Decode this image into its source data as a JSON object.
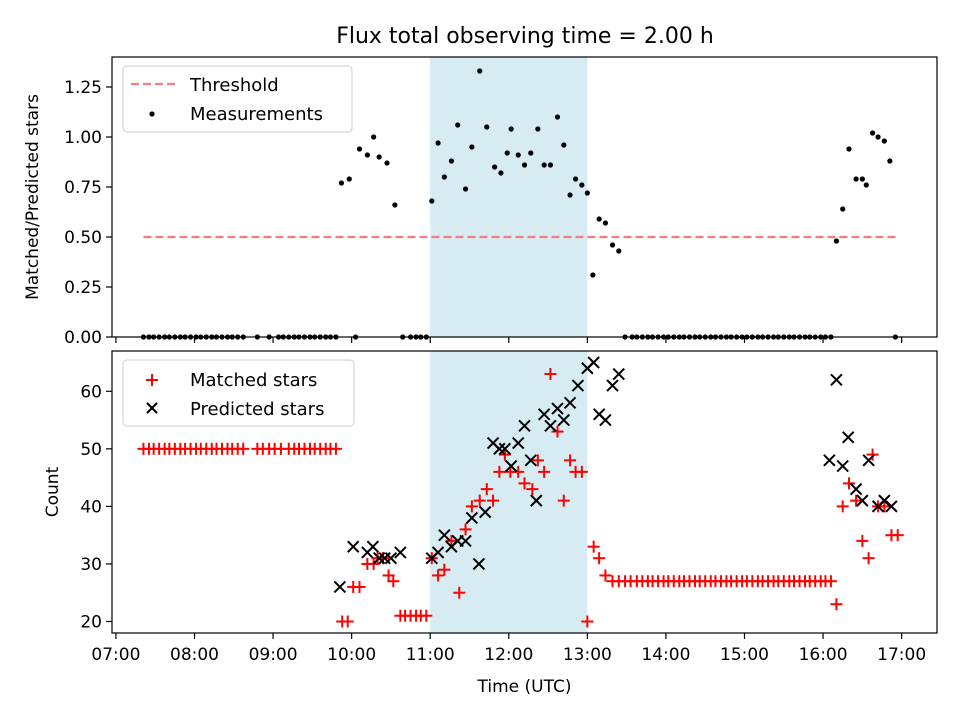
{
  "figure_title": "Flux total observing time = 2.00 h",
  "chart_data": [
    {
      "type": "scatter",
      "name": "ratio-panel",
      "ylabel": "Matched/Predicted stars",
      "xlabel": "",
      "xlim_hours": [
        6.95,
        17.45
      ],
      "ylim": [
        0,
        1.4
      ],
      "yticks": [
        0.0,
        0.25,
        0.5,
        0.75,
        1.0,
        1.25
      ],
      "ytick_labels": [
        "0.00",
        "0.25",
        "0.50",
        "0.75",
        "1.00",
        "1.25"
      ],
      "highlight_span_hours": [
        11.0,
        13.0
      ],
      "threshold": {
        "label": "Threshold",
        "y": 0.5,
        "x_range_hours": [
          7.35,
          16.95
        ],
        "color": "#f08080"
      },
      "series": [
        {
          "name": "Measurements",
          "color": "#000000",
          "x": [
            7.35,
            7.42,
            7.48,
            7.55,
            7.62,
            7.68,
            7.75,
            7.82,
            7.88,
            7.95,
            8.02,
            8.08,
            8.15,
            8.22,
            8.28,
            8.35,
            8.42,
            8.48,
            8.55,
            8.62,
            8.8,
            8.95,
            9.07,
            9.13,
            9.2,
            9.27,
            9.33,
            9.4,
            9.47,
            9.53,
            9.6,
            9.67,
            9.73,
            9.8,
            9.87,
            9.97,
            10.05,
            10.1,
            10.2,
            10.28,
            10.35,
            10.45,
            10.55,
            10.65,
            10.75,
            10.82,
            10.88,
            10.95,
            11.02,
            11.1,
            11.18,
            11.27,
            11.35,
            11.45,
            11.53,
            11.63,
            11.72,
            11.82,
            11.9,
            11.98,
            12.03,
            12.12,
            12.2,
            12.28,
            12.37,
            12.45,
            12.53,
            12.62,
            12.7,
            12.78,
            12.85,
            12.93,
            13.0,
            13.07,
            13.15,
            13.23,
            13.32,
            13.4,
            13.48,
            13.57,
            13.63,
            13.7,
            13.77,
            13.83,
            13.9,
            13.97,
            14.03,
            14.1,
            14.17,
            14.23,
            14.3,
            14.37,
            14.43,
            14.5,
            14.57,
            14.63,
            14.7,
            14.77,
            14.83,
            14.9,
            14.97,
            15.03,
            15.1,
            15.17,
            15.23,
            15.3,
            15.37,
            15.43,
            15.5,
            15.57,
            15.63,
            15.7,
            15.77,
            15.83,
            15.9,
            15.97,
            16.03,
            16.1,
            16.17,
            16.25,
            16.33,
            16.42,
            16.5,
            16.55,
            16.63,
            16.7,
            16.78,
            16.85,
            16.92
          ],
          "y": [
            0,
            0,
            0,
            0,
            0,
            0,
            0,
            0,
            0,
            0,
            0,
            0,
            0,
            0,
            0,
            0,
            0,
            0,
            0,
            0,
            0,
            0,
            0,
            0,
            0,
            0,
            0,
            0,
            0,
            0,
            0,
            0,
            0,
            0,
            0.77,
            0.79,
            0,
            0.94,
            0.91,
            1.0,
            0.9,
            0.87,
            0.66,
            0,
            0,
            0,
            0,
            0,
            0.68,
            0.97,
            0.8,
            0.88,
            1.06,
            0.74,
            0.95,
            1.33,
            1.05,
            0.85,
            0.82,
            0.92,
            1.04,
            0.91,
            0.86,
            0.92,
            1.04,
            0.86,
            0.86,
            1.1,
            0.96,
            0.71,
            0.79,
            0.76,
            0.72,
            0.31,
            0.59,
            0.57,
            0.46,
            0.43,
            0,
            0,
            0,
            0,
            0,
            0,
            0,
            0,
            0,
            0,
            0,
            0,
            0,
            0,
            0,
            0,
            0,
            0,
            0,
            0,
            0,
            0,
            0,
            0,
            0,
            0,
            0,
            0,
            0,
            0,
            0,
            0,
            0,
            0,
            0,
            0,
            0,
            0,
            0,
            0,
            0.48,
            0.64,
            0.94,
            0.79,
            0.79,
            0.76,
            1.02,
            1.0,
            0.98,
            0.88,
            0
          ]
        }
      ]
    },
    {
      "type": "scatter",
      "name": "count-panel",
      "ylabel": "Count",
      "xlabel": "Time (UTC)",
      "xlim_hours": [
        6.95,
        17.45
      ],
      "ylim": [
        18,
        67
      ],
      "yticks": [
        20,
        30,
        40,
        50,
        60
      ],
      "ytick_labels": [
        "20",
        "30",
        "40",
        "50",
        "60"
      ],
      "xticks_hours": [
        7,
        8,
        9,
        10,
        11,
        12,
        13,
        14,
        15,
        16,
        17
      ],
      "xtick_labels": [
        "07:00",
        "08:00",
        "09:00",
        "10:00",
        "11:00",
        "12:00",
        "13:00",
        "14:00",
        "15:00",
        "16:00",
        "17:00"
      ],
      "highlight_span_hours": [
        11.0,
        13.0
      ],
      "series": [
        {
          "name": "Matched stars",
          "marker": "+",
          "color": "#ff0000",
          "x": [
            7.35,
            7.42,
            7.48,
            7.55,
            7.62,
            7.68,
            7.75,
            7.82,
            7.88,
            7.95,
            8.02,
            8.08,
            8.15,
            8.22,
            8.28,
            8.35,
            8.42,
            8.48,
            8.55,
            8.62,
            8.8,
            8.87,
            8.95,
            9.02,
            9.1,
            9.2,
            9.27,
            9.33,
            9.4,
            9.47,
            9.53,
            9.6,
            9.67,
            9.73,
            9.8,
            9.88,
            9.95,
            10.02,
            10.1,
            10.2,
            10.28,
            10.33,
            10.4,
            10.47,
            10.53,
            10.62,
            10.68,
            10.75,
            10.82,
            10.88,
            10.95,
            11.02,
            11.1,
            11.18,
            11.27,
            11.37,
            11.45,
            11.53,
            11.63,
            11.72,
            11.8,
            11.88,
            11.95,
            12.02,
            12.12,
            12.2,
            12.3,
            12.37,
            12.45,
            12.53,
            12.62,
            12.7,
            12.78,
            12.85,
            12.93,
            13.0,
            13.08,
            13.15,
            13.23,
            13.32,
            13.4,
            13.48,
            13.55,
            13.63,
            13.7,
            13.77,
            13.83,
            13.9,
            13.97,
            14.03,
            14.1,
            14.17,
            14.23,
            14.3,
            14.37,
            14.43,
            14.5,
            14.57,
            14.63,
            14.7,
            14.77,
            14.83,
            14.9,
            14.97,
            15.03,
            15.1,
            15.17,
            15.23,
            15.3,
            15.37,
            15.43,
            15.5,
            15.57,
            15.63,
            15.7,
            15.77,
            15.83,
            15.9,
            15.97,
            16.03,
            16.1,
            16.17,
            16.25,
            16.33,
            16.42,
            16.5,
            16.58,
            16.63,
            16.7,
            16.78,
            16.87,
            16.95
          ],
          "y": [
            50,
            50,
            50,
            50,
            50,
            50,
            50,
            50,
            50,
            50,
            50,
            50,
            50,
            50,
            50,
            50,
            50,
            50,
            50,
            50,
            50,
            50,
            50,
            50,
            50,
            50,
            50,
            50,
            50,
            50,
            50,
            50,
            50,
            50,
            50,
            20,
            20,
            26,
            26,
            30,
            30,
            31,
            31,
            28,
            27,
            21,
            21,
            21,
            21,
            21,
            21,
            31,
            28,
            29,
            34,
            25,
            36,
            40,
            41,
            43,
            41,
            46,
            49,
            46,
            46,
            44,
            43,
            48,
            46,
            63,
            53,
            41,
            48,
            46,
            46,
            20,
            33,
            31,
            28,
            27,
            27,
            27,
            27,
            27,
            27,
            27,
            27,
            27,
            27,
            27,
            27,
            27,
            27,
            27,
            27,
            27,
            27,
            27,
            27,
            27,
            27,
            27,
            27,
            27,
            27,
            27,
            27,
            27,
            27,
            27,
            27,
            27,
            27,
            27,
            27,
            27,
            27,
            27,
            27,
            27,
            27,
            23,
            40,
            44,
            41,
            34,
            31,
            49,
            40,
            40,
            35,
            35
          ]
        },
        {
          "name": "Predicted stars",
          "marker": "x",
          "color": "#000000",
          "x": [
            9.85,
            10.02,
            10.2,
            10.27,
            10.35,
            10.42,
            10.5,
            10.62,
            11.02,
            11.1,
            11.18,
            11.27,
            11.35,
            11.45,
            11.53,
            11.62,
            11.7,
            11.8,
            11.88,
            11.95,
            12.03,
            12.12,
            12.2,
            12.28,
            12.35,
            12.45,
            12.53,
            12.62,
            12.7,
            12.78,
            12.88,
            13.0,
            13.08,
            13.15,
            13.23,
            13.32,
            13.4,
            16.08,
            16.17,
            16.25,
            16.32,
            16.42,
            16.5,
            16.58,
            16.7,
            16.78,
            16.87
          ],
          "y": [
            26,
            33,
            32,
            33,
            31,
            31,
            31,
            32,
            31,
            32,
            35,
            33,
            34,
            34,
            38,
            30,
            39,
            51,
            50,
            50,
            47,
            51,
            54,
            48,
            41,
            56,
            54,
            57,
            55,
            58,
            61,
            64,
            65,
            56,
            55,
            61,
            63,
            48,
            62,
            47,
            52,
            43,
            41,
            48,
            40,
            41,
            40
          ]
        }
      ]
    }
  ]
}
